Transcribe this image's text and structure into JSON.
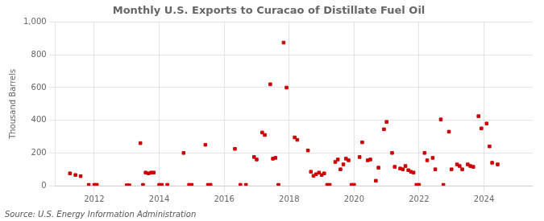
{
  "chart_data": {
    "type": "scatter",
    "title": "Monthly U.S. Exports to Curacao of Distillate Fuel Oil",
    "ylabel": "Thousand Barrels",
    "annotations": [
      "Source: U.S. Energy Information Administration"
    ],
    "color": "#cc0000",
    "marker": "square",
    "grid": true,
    "xlim": [
      2010.8,
      2025.5
    ],
    "xticks": [
      2012,
      2014,
      2016,
      2018,
      2020,
      2022,
      2024
    ],
    "ylim": [
      0,
      1000
    ],
    "yticks": [
      0,
      200,
      400,
      600,
      800,
      {
        "value": 1000,
        "label": "1,000"
      }
    ],
    "x": [
      2011.25,
      2011.42,
      2011.58,
      2011.83,
      2012.0,
      2012.08,
      2013.0,
      2013.08,
      2013.42,
      2013.5,
      2013.58,
      2013.67,
      2013.75,
      2013.83,
      2014.0,
      2014.08,
      2014.25,
      2014.75,
      2014.92,
      2015.0,
      2015.42,
      2015.5,
      2015.58,
      2016.33,
      2016.5,
      2016.67,
      2016.92,
      2017.0,
      2017.17,
      2017.25,
      2017.42,
      2017.5,
      2017.58,
      2017.67,
      2017.83,
      2017.92,
      2018.17,
      2018.25,
      2018.58,
      2018.67,
      2018.75,
      2018.83,
      2018.92,
      2019.0,
      2019.08,
      2019.17,
      2019.25,
      2019.42,
      2019.5,
      2019.58,
      2019.67,
      2019.75,
      2019.83,
      2019.92,
      2020.0,
      2020.17,
      2020.25,
      2020.42,
      2020.5,
      2020.67,
      2020.75,
      2020.92,
      2021.0,
      2021.17,
      2021.25,
      2021.42,
      2021.5,
      2021.58,
      2021.67,
      2021.75,
      2021.83,
      2021.92,
      2022.0,
      2022.17,
      2022.25,
      2022.42,
      2022.5,
      2022.67,
      2022.75,
      2022.92,
      2023.0,
      2023.17,
      2023.25,
      2023.33,
      2023.5,
      2023.58,
      2023.67,
      2023.83,
      2023.92,
      2024.08,
      2024.17,
      2024.25,
      2024.42
    ],
    "values": [
      75,
      65,
      58,
      5,
      5,
      5,
      2,
      2,
      260,
      5,
      80,
      75,
      80,
      80,
      5,
      5,
      5,
      200,
      5,
      5,
      250,
      5,
      5,
      225,
      5,
      5,
      175,
      160,
      325,
      310,
      620,
      165,
      170,
      5,
      875,
      600,
      295,
      280,
      215,
      85,
      60,
      70,
      80,
      65,
      75,
      5,
      5,
      145,
      160,
      100,
      130,
      165,
      155,
      5,
      5,
      175,
      265,
      155,
      160,
      30,
      110,
      345,
      390,
      200,
      115,
      105,
      100,
      120,
      95,
      85,
      80,
      5,
      5,
      200,
      155,
      170,
      100,
      405,
      5,
      330,
      100,
      130,
      120,
      100,
      130,
      120,
      115,
      425,
      350,
      380,
      240,
      140,
      130
    ]
  }
}
